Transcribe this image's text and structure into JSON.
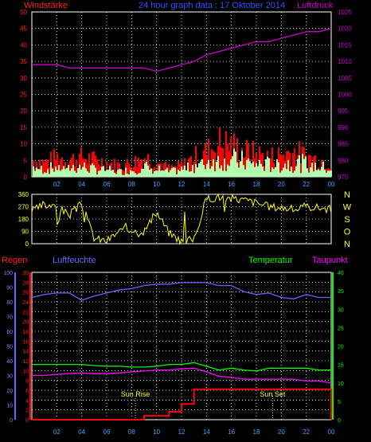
{
  "header": {
    "wind_label": "Windstärke",
    "title": "24 hour graph data : 17 Oktober 2014",
    "pressure_label": "Luftdruck"
  },
  "colors": {
    "wind_gust": "#ff0000",
    "wind_avg": "#b0ffb0",
    "pressure": "#cc00cc",
    "direction": "#ffff00",
    "rain": "#ff0000",
    "humidity": "#6666ff",
    "temperature": "#00ff00",
    "dewpoint": "#ff00ff",
    "grid": "#ffffff",
    "axis_time": "#40a0ff"
  },
  "chart_data": [
    {
      "type": "area",
      "panel": "wind_pressure",
      "x_ticks": [
        "02",
        "04",
        "06",
        "08",
        "10",
        "12",
        "14",
        "16",
        "18",
        "20",
        "22",
        "00"
      ],
      "left_axis": {
        "label": "Windstärke",
        "ticks": [
          0,
          5,
          10,
          15,
          20,
          25,
          30,
          35,
          40,
          45,
          50
        ],
        "ylim": [
          0,
          50
        ]
      },
      "right_axis": {
        "label": "Luftdruck",
        "ticks": [
          975,
          980,
          985,
          990,
          995,
          1000,
          1005,
          1010,
          1015,
          1020,
          1025
        ],
        "ylim": [
          975,
          1025
        ]
      },
      "hours": [
        0,
        1,
        2,
        3,
        4,
        5,
        6,
        7,
        8,
        9,
        10,
        11,
        12,
        13,
        14,
        15,
        16,
        17,
        18,
        19,
        20,
        21,
        22,
        23,
        24
      ],
      "series": [
        {
          "name": "Windstärke",
          "values": [
            6,
            5,
            7,
            6,
            7,
            6,
            5,
            4,
            5,
            7,
            5,
            3,
            4,
            7,
            9,
            12,
            11,
            9,
            8,
            7,
            8,
            9,
            7,
            6,
            5
          ]
        },
        {
          "values": [
            4,
            3,
            4,
            4,
            4,
            3,
            3,
            2,
            3,
            4,
            3,
            2,
            3,
            5,
            6,
            8,
            7,
            6,
            5,
            5,
            5,
            6,
            5,
            4,
            3
          ]
        },
        {
          "name": "Luftdruck",
          "values": [
            1009,
            1009,
            1009,
            1008,
            1008,
            1008,
            1008,
            1008,
            1008,
            1008,
            1007,
            1008,
            1009,
            1010,
            1012,
            1013,
            1014,
            1015,
            1016,
            1016,
            1017,
            1018,
            1019,
            1019,
            1020
          ]
        }
      ]
    },
    {
      "type": "line",
      "panel": "wind_direction",
      "left_ticks": [
        0,
        90,
        180,
        270,
        360
      ],
      "right_labels": [
        "N",
        "W",
        "S",
        "O",
        "N"
      ],
      "ylim": [
        0,
        360
      ],
      "hours": [
        0,
        1,
        2,
        3,
        4,
        5,
        6,
        7,
        8,
        9,
        10,
        11,
        12,
        13,
        14,
        15,
        16,
        17,
        18,
        19,
        20,
        21,
        22,
        23,
        24
      ],
      "values": [
        240,
        280,
        270,
        210,
        290,
        40,
        20,
        90,
        110,
        90,
        230,
        80,
        20,
        30,
        330,
        340,
        330,
        320,
        300,
        270,
        265,
        250,
        270,
        265,
        250
      ]
    },
    {
      "type": "line",
      "panel": "climate",
      "x_ticks": [
        "02",
        "04",
        "06",
        "08",
        "10",
        "12",
        "14",
        "16",
        "18",
        "20",
        "22",
        "00"
      ],
      "labels": {
        "rain": "Regen",
        "humidity": "Luftfeuchte",
        "temperature": "Temperatur",
        "dewpoint": "Taupunkt"
      },
      "humidity_ticks": [
        0,
        10,
        20,
        30,
        40,
        50,
        60,
        70,
        80,
        90,
        100
      ],
      "rain_ticks": [
        0,
        2,
        4,
        6,
        8,
        10,
        12,
        14,
        16,
        18,
        20,
        22,
        24,
        26,
        28,
        30
      ],
      "temp_ticks": [
        0,
        5,
        10,
        15,
        20,
        25,
        30,
        35,
        40
      ],
      "annotations": {
        "sunrise": "Sun Rise",
        "sunset": "Sun Set",
        "sunrise_hour": 8.3,
        "sunset_hour": 19.3
      },
      "hours": [
        0,
        1,
        2,
        3,
        4,
        5,
        6,
        7,
        8,
        9,
        10,
        11,
        12,
        13,
        14,
        15,
        16,
        17,
        18,
        19,
        20,
        21,
        22,
        23,
        24
      ],
      "series": [
        {
          "name": "Luftfeuchte",
          "axis": "humidity",
          "values": [
            83,
            85,
            86,
            86,
            81,
            84,
            86,
            88,
            89,
            91,
            92,
            92,
            93,
            93,
            93,
            91,
            91,
            87,
            85,
            86,
            83,
            82,
            85,
            83,
            83
          ]
        },
        {
          "name": "Regen",
          "axis": "rain",
          "values": [
            0,
            0,
            0,
            0,
            0,
            0,
            0,
            0,
            0,
            0.8,
            0.8,
            1.6,
            3.2,
            6.2,
            6.2,
            6.2,
            6.2,
            6.2,
            6.2,
            6.2,
            6.2,
            6.2,
            6.2,
            6.2,
            0
          ]
        },
        {
          "name": "Temperatur",
          "axis": "temp",
          "values": [
            15,
            15,
            15,
            15,
            15,
            14.7,
            14.5,
            14.5,
            14.3,
            14.3,
            14.5,
            15,
            15,
            15.5,
            14.5,
            13.5,
            14,
            13.5,
            13.2,
            14,
            14,
            14,
            14,
            13.5,
            13.5
          ]
        },
        {
          "name": "Taupunkt",
          "axis": "temp",
          "values": [
            12,
            12,
            12.3,
            12.5,
            12.7,
            12.5,
            12.5,
            12.7,
            13,
            13.2,
            13.5,
            13.5,
            13.8,
            14,
            13,
            11.8,
            11.5,
            11,
            11,
            11,
            11,
            11,
            10.5,
            10.5,
            10
          ]
        }
      ]
    }
  ]
}
